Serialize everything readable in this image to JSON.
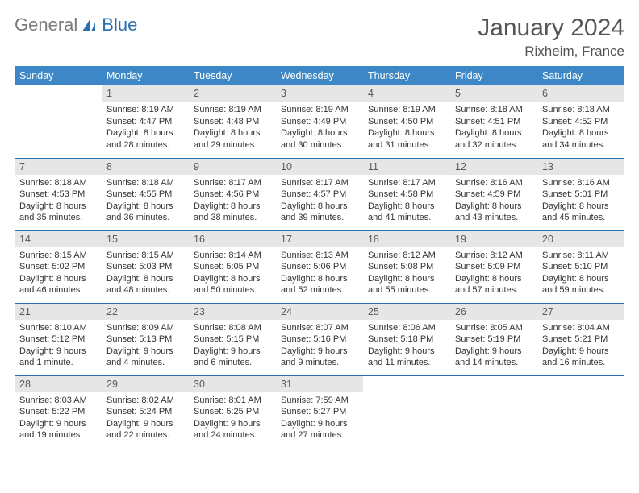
{
  "logo": {
    "general": "General",
    "blue": "Blue"
  },
  "header": {
    "title": "January 2024",
    "location": "Rixheim, France"
  },
  "weekdays": [
    "Sunday",
    "Monday",
    "Tuesday",
    "Wednesday",
    "Thursday",
    "Friday",
    "Saturday"
  ],
  "colors": {
    "header_bg": "#3d87c7",
    "header_fg": "#ffffff",
    "row_divider": "#2a6fb0",
    "daynum_bg": "#e6e6e6",
    "text": "#333333"
  },
  "grid": {
    "cols": 7,
    "start_offset": 1,
    "days": [
      {
        "n": 1,
        "sr": "8:19 AM",
        "ss": "4:47 PM",
        "dl": "8 hours and 28 minutes."
      },
      {
        "n": 2,
        "sr": "8:19 AM",
        "ss": "4:48 PM",
        "dl": "8 hours and 29 minutes."
      },
      {
        "n": 3,
        "sr": "8:19 AM",
        "ss": "4:49 PM",
        "dl": "8 hours and 30 minutes."
      },
      {
        "n": 4,
        "sr": "8:19 AM",
        "ss": "4:50 PM",
        "dl": "8 hours and 31 minutes."
      },
      {
        "n": 5,
        "sr": "8:18 AM",
        "ss": "4:51 PM",
        "dl": "8 hours and 32 minutes."
      },
      {
        "n": 6,
        "sr": "8:18 AM",
        "ss": "4:52 PM",
        "dl": "8 hours and 34 minutes."
      },
      {
        "n": 7,
        "sr": "8:18 AM",
        "ss": "4:53 PM",
        "dl": "8 hours and 35 minutes."
      },
      {
        "n": 8,
        "sr": "8:18 AM",
        "ss": "4:55 PM",
        "dl": "8 hours and 36 minutes."
      },
      {
        "n": 9,
        "sr": "8:17 AM",
        "ss": "4:56 PM",
        "dl": "8 hours and 38 minutes."
      },
      {
        "n": 10,
        "sr": "8:17 AM",
        "ss": "4:57 PM",
        "dl": "8 hours and 39 minutes."
      },
      {
        "n": 11,
        "sr": "8:17 AM",
        "ss": "4:58 PM",
        "dl": "8 hours and 41 minutes."
      },
      {
        "n": 12,
        "sr": "8:16 AM",
        "ss": "4:59 PM",
        "dl": "8 hours and 43 minutes."
      },
      {
        "n": 13,
        "sr": "8:16 AM",
        "ss": "5:01 PM",
        "dl": "8 hours and 45 minutes."
      },
      {
        "n": 14,
        "sr": "8:15 AM",
        "ss": "5:02 PM",
        "dl": "8 hours and 46 minutes."
      },
      {
        "n": 15,
        "sr": "8:15 AM",
        "ss": "5:03 PM",
        "dl": "8 hours and 48 minutes."
      },
      {
        "n": 16,
        "sr": "8:14 AM",
        "ss": "5:05 PM",
        "dl": "8 hours and 50 minutes."
      },
      {
        "n": 17,
        "sr": "8:13 AM",
        "ss": "5:06 PM",
        "dl": "8 hours and 52 minutes."
      },
      {
        "n": 18,
        "sr": "8:12 AM",
        "ss": "5:08 PM",
        "dl": "8 hours and 55 minutes."
      },
      {
        "n": 19,
        "sr": "8:12 AM",
        "ss": "5:09 PM",
        "dl": "8 hours and 57 minutes."
      },
      {
        "n": 20,
        "sr": "8:11 AM",
        "ss": "5:10 PM",
        "dl": "8 hours and 59 minutes."
      },
      {
        "n": 21,
        "sr": "8:10 AM",
        "ss": "5:12 PM",
        "dl": "9 hours and 1 minute."
      },
      {
        "n": 22,
        "sr": "8:09 AM",
        "ss": "5:13 PM",
        "dl": "9 hours and 4 minutes."
      },
      {
        "n": 23,
        "sr": "8:08 AM",
        "ss": "5:15 PM",
        "dl": "9 hours and 6 minutes."
      },
      {
        "n": 24,
        "sr": "8:07 AM",
        "ss": "5:16 PM",
        "dl": "9 hours and 9 minutes."
      },
      {
        "n": 25,
        "sr": "8:06 AM",
        "ss": "5:18 PM",
        "dl": "9 hours and 11 minutes."
      },
      {
        "n": 26,
        "sr": "8:05 AM",
        "ss": "5:19 PM",
        "dl": "9 hours and 14 minutes."
      },
      {
        "n": 27,
        "sr": "8:04 AM",
        "ss": "5:21 PM",
        "dl": "9 hours and 16 minutes."
      },
      {
        "n": 28,
        "sr": "8:03 AM",
        "ss": "5:22 PM",
        "dl": "9 hours and 19 minutes."
      },
      {
        "n": 29,
        "sr": "8:02 AM",
        "ss": "5:24 PM",
        "dl": "9 hours and 22 minutes."
      },
      {
        "n": 30,
        "sr": "8:01 AM",
        "ss": "5:25 PM",
        "dl": "9 hours and 24 minutes."
      },
      {
        "n": 31,
        "sr": "7:59 AM",
        "ss": "5:27 PM",
        "dl": "9 hours and 27 minutes."
      }
    ]
  },
  "labels": {
    "sunrise": "Sunrise: ",
    "sunset": "Sunset: ",
    "daylight": "Daylight: "
  }
}
